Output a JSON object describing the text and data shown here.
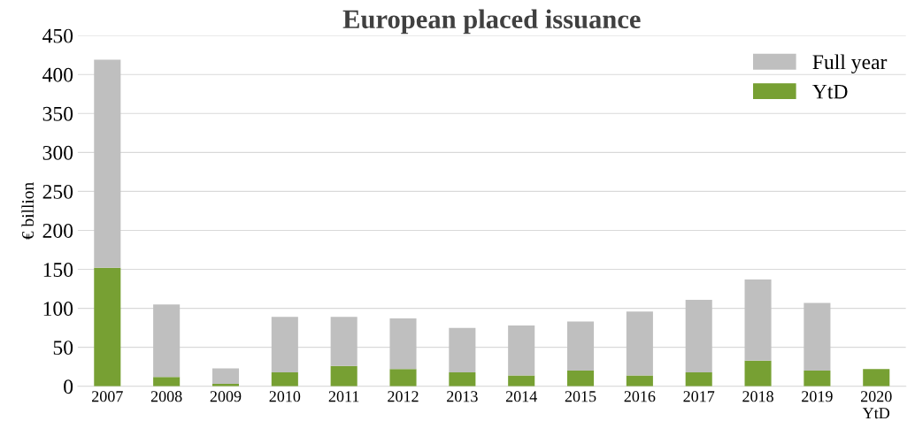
{
  "chart_data": {
    "type": "bar",
    "title": "European placed issuance",
    "ylabel": "€ billion",
    "categories": [
      "2007",
      "2008",
      "2009",
      "2010",
      "2011",
      "2012",
      "2013",
      "2014",
      "2015",
      "2016",
      "2017",
      "2018",
      "2019",
      "2020\nYtD"
    ],
    "stacked": true,
    "series": [
      {
        "name": "YtD",
        "color": "#77a033",
        "values": [
          152,
          12,
          3,
          18,
          26,
          22,
          18,
          14,
          20,
          14,
          18,
          33,
          20,
          22
        ]
      },
      {
        "name": "Full year",
        "color": "#bfbfbf",
        "values": [
          267,
          93,
          20,
          71,
          63,
          65,
          57,
          64,
          63,
          82,
          93,
          104,
          87,
          null
        ]
      }
    ],
    "ylim": [
      0,
      450
    ],
    "yticks": [
      0,
      50,
      100,
      150,
      200,
      250,
      300,
      350,
      400,
      450
    ],
    "grid": "y",
    "legend": "top right"
  }
}
